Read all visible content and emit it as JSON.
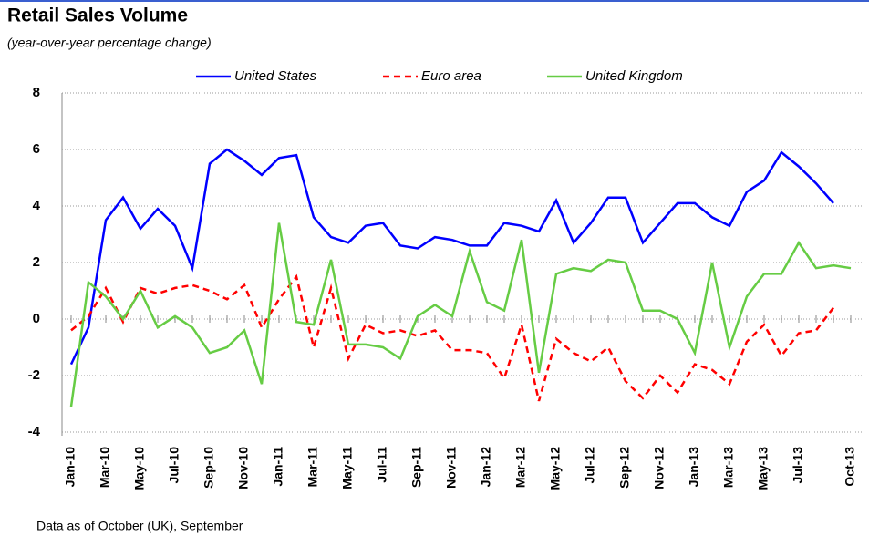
{
  "chart_data": {
    "type": "line",
    "title": "Retail Sales Volume",
    "subtitle": "(year-over-year percentage change)",
    "footnote": "Data as of October (UK), September",
    "categories": [
      "Jan-10",
      null,
      "Mar-10",
      null,
      "May-10",
      null,
      "Jul-10",
      null,
      "Sep-10",
      null,
      "Nov-10",
      null,
      "Jan-11",
      null,
      "Mar-11",
      null,
      "May-11",
      null,
      "Jul-11",
      null,
      "Sep-11",
      null,
      "Nov-11",
      null,
      "Jan-12",
      null,
      "Mar-12",
      null,
      "May-12",
      null,
      "Jul-12",
      null,
      "Sep-12",
      null,
      "Nov-12",
      null,
      "Jan-13",
      null,
      "Mar-13",
      null,
      "May-13",
      null,
      "Jul-13",
      null,
      null,
      "Oct-13"
    ],
    "series": [
      {
        "name": "United States",
        "color": "#0000ff",
        "style": "solid",
        "values": [
          -1.6,
          -0.3,
          3.5,
          4.3,
          3.2,
          3.9,
          3.3,
          1.8,
          5.5,
          6.0,
          5.6,
          5.1,
          5.7,
          5.8,
          3.6,
          2.9,
          2.7,
          3.3,
          3.4,
          2.6,
          2.5,
          2.9,
          2.8,
          2.6,
          2.6,
          3.4,
          3.3,
          3.1,
          4.2,
          2.7,
          3.4,
          4.3,
          4.3,
          2.7,
          3.4,
          4.1,
          4.1,
          3.6,
          3.3,
          4.5,
          4.9,
          5.9,
          5.4,
          4.8,
          4.1,
          null
        ]
      },
      {
        "name": "Euro area",
        "color": "#ff0000",
        "style": "dashed",
        "values": [
          -0.4,
          0.1,
          1.1,
          -0.1,
          1.1,
          0.9,
          1.1,
          1.2,
          1.0,
          0.7,
          1.2,
          -0.3,
          0.7,
          1.5,
          -1.0,
          1.1,
          -1.4,
          -0.2,
          -0.5,
          -0.4,
          -0.6,
          -0.4,
          -1.1,
          -1.1,
          -1.2,
          -2.1,
          -0.2,
          -2.9,
          -0.7,
          -1.2,
          -1.5,
          -1.0,
          -2.2,
          -2.8,
          -2.0,
          -2.6,
          -1.6,
          -1.8,
          -2.3,
          -0.8,
          -0.2,
          -1.3,
          -0.5,
          -0.4,
          0.4,
          null
        ]
      },
      {
        "name": "United Kingdom",
        "color": "#66cc44",
        "style": "solid",
        "values": [
          -3.1,
          1.3,
          0.8,
          0.0,
          1.0,
          -0.3,
          0.1,
          -0.3,
          -1.2,
          -1.0,
          -0.4,
          -2.3,
          3.4,
          -0.1,
          -0.2,
          2.1,
          -0.9,
          -0.9,
          -1.0,
          -1.4,
          0.1,
          0.5,
          0.1,
          2.4,
          0.6,
          0.3,
          2.8,
          -1.9,
          1.6,
          1.8,
          1.7,
          2.1,
          2.0,
          0.3,
          0.3,
          0.0,
          -1.2,
          2.0,
          -1.0,
          0.8,
          1.6,
          1.6,
          2.7,
          1.8,
          1.9,
          1.8
        ]
      }
    ],
    "ylim": [
      -4,
      8
    ],
    "yticks": [
      -4,
      -2,
      0,
      2,
      4,
      6,
      8
    ],
    "grid": true
  }
}
